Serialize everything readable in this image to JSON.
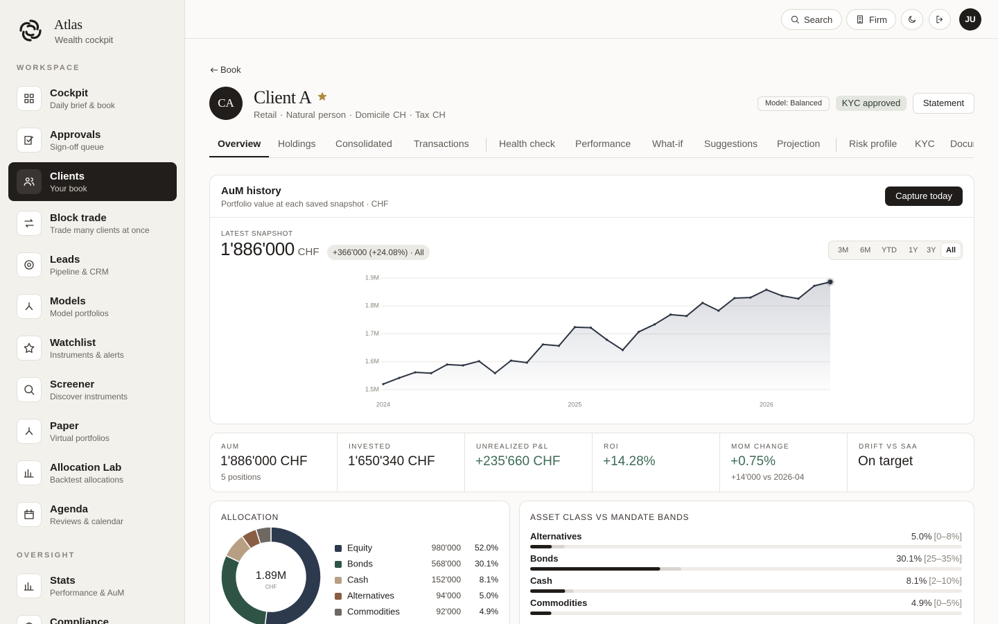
{
  "sidebar": {
    "brand": {
      "name": "Atlas",
      "tagline": "Wealth cockpit"
    },
    "sections": [
      {
        "title": "WORKSPACE",
        "items": [
          {
            "label": "Cockpit",
            "sub": "Daily brief & book"
          },
          {
            "label": "Approvals",
            "sub": "Sign-off queue"
          },
          {
            "label": "Clients",
            "sub": "Your book",
            "active": true
          },
          {
            "label": "Block trade",
            "sub": "Trade many clients at once"
          },
          {
            "label": "Leads",
            "sub": "Pipeline & CRM"
          },
          {
            "label": "Models",
            "sub": "Model portfolios"
          },
          {
            "label": "Watchlist",
            "sub": "Instruments & alerts"
          },
          {
            "label": "Screener",
            "sub": "Discover instruments"
          },
          {
            "label": "Paper",
            "sub": "Virtual portfolios"
          },
          {
            "label": "Allocation Lab",
            "sub": "Backtest allocations"
          },
          {
            "label": "Agenda",
            "sub": "Reviews & calendar"
          }
        ]
      },
      {
        "title": "OVERSIGHT",
        "items": [
          {
            "label": "Stats",
            "sub": "Performance & AuM"
          },
          {
            "label": "Compliance",
            "sub": ""
          }
        ]
      }
    ]
  },
  "topbar": {
    "search": "Search",
    "firm": "Firm",
    "avatar": "JU"
  },
  "back": "Book",
  "client": {
    "initials": "CA",
    "name": "Client A",
    "meta": "Retail · Natural person · Domicile CH · Tax CH",
    "model_badge": "Model: Balanced",
    "kyc_badge": "KYC approved",
    "statement": "Statement"
  },
  "tabs": [
    [
      "Overview",
      "Holdings",
      "Consolidated",
      "Transactions"
    ],
    [
      "Health check",
      "Performance",
      "What-if",
      "Suggestions",
      "Projection"
    ],
    [
      "Risk profile",
      "KYC",
      "Documents"
    ]
  ],
  "active_tab": "Overview",
  "aum_card": {
    "button": "Capture today",
    "latest_label": "LATEST SNAPSHOT",
    "latest_value": "1'886'000",
    "unit": "CHF",
    "change": "+366'000 (+24.08%) · All",
    "ranges": [
      "3M",
      "6M",
      "YTD",
      "1Y",
      "3Y",
      "All"
    ],
    "active_range": "All"
  },
  "kpis": [
    {
      "label": "AUM",
      "value": "1'886'000 CHF",
      "sub": "5 positions"
    },
    {
      "label": "INVESTED",
      "value": "1'650'340 CHF"
    },
    {
      "label": "UNREALIZED P&L",
      "value": "+235'660 CHF",
      "tone": "positive"
    },
    {
      "label": "ROI",
      "value": "+14.28%",
      "tone": "positive"
    },
    {
      "label": "MOM CHANGE",
      "value": "+0.75%",
      "sub": "+14'000 vs 2026-04",
      "tone": "positive"
    },
    {
      "label": "DRIFT VS SAA",
      "value": "On target"
    }
  ],
  "chart_data": [
    {
      "type": "line",
      "title": "AuM history",
      "subtitle": "Portfolio value at each saved snapshot · CHF",
      "x": [
        "2024-01",
        "2024-02",
        "2024-03",
        "2024-04",
        "2024-05",
        "2024-06",
        "2024-07",
        "2024-08",
        "2024-09",
        "2024-10",
        "2024-11",
        "2024-12",
        "2025-01",
        "2025-02",
        "2025-03",
        "2025-04",
        "2025-05",
        "2025-06",
        "2025-07",
        "2025-08",
        "2025-09",
        "2025-10",
        "2025-11",
        "2025-12",
        "2026-01",
        "2026-02",
        "2026-03",
        "2026-04",
        "2026-05"
      ],
      "values": [
        1520000,
        1542000,
        1562000,
        1559000,
        1590000,
        1587000,
        1602000,
        1559000,
        1604000,
        1597000,
        1662000,
        1657000,
        1724000,
        1722000,
        1679000,
        1642000,
        1707000,
        1734000,
        1769000,
        1764000,
        1811000,
        1783000,
        1828000,
        1830000,
        1858000,
        1836000,
        1826000,
        1872000,
        1886000
      ],
      "color": "#2d3442",
      "ylim": [
        1500000,
        1900000
      ],
      "yticks": [
        {
          "value": 1500000,
          "label": "1.5M"
        },
        {
          "value": 1600000,
          "label": "1.6M"
        },
        {
          "value": 1700000,
          "label": "1.7M"
        },
        {
          "value": 1800000,
          "label": "1.8M"
        },
        {
          "value": 1900000,
          "label": "1.9M"
        }
      ],
      "xticks": [
        {
          "value": "2024-01",
          "label": "2024"
        },
        {
          "value": "2025-01",
          "label": "2025"
        },
        {
          "value": "2026-01",
          "label": "2026"
        }
      ],
      "grid": true
    },
    {
      "type": "pie",
      "title": "ALLOCATION",
      "center_label": "1.89M",
      "center_unit": "CHF",
      "categories": [
        "Equity",
        "Bonds",
        "Cash",
        "Alternatives",
        "Commodities"
      ],
      "values": [
        52.0,
        30.1,
        8.1,
        5.0,
        4.9
      ],
      "value_labels": [
        "52.0%",
        "30.1%",
        "8.1%",
        "5.0%",
        "4.9%"
      ],
      "amounts": [
        980000,
        568000,
        152000,
        94000,
        92000
      ],
      "amount_labels": [
        "980'000",
        "568'000",
        "152'000",
        "94'000",
        "92'000"
      ],
      "colors": [
        "#2d3a4e",
        "#2f5446",
        "#b89f84",
        "#8a5e44",
        "#6e6863"
      ]
    },
    {
      "type": "bar",
      "title": "ASSET CLASS VS MANDATE BANDS",
      "categories": [
        "Alternatives",
        "Bonds",
        "Cash",
        "Commodities"
      ],
      "values": [
        5.0,
        30.1,
        8.1,
        4.9
      ],
      "value_labels": [
        "5.0%",
        "30.1%",
        "8.1%",
        "4.9%"
      ],
      "bands": [
        [
          0,
          8
        ],
        [
          25,
          35
        ],
        [
          2,
          10
        ],
        [
          0,
          5
        ]
      ],
      "band_labels": [
        "[0–8%]",
        "[25–35%]",
        "[2–10%]",
        "[0–5%]"
      ],
      "xlim": [
        0,
        100
      ],
      "color": "#1f1c1a",
      "band_color": "#d9d5ce"
    }
  ]
}
